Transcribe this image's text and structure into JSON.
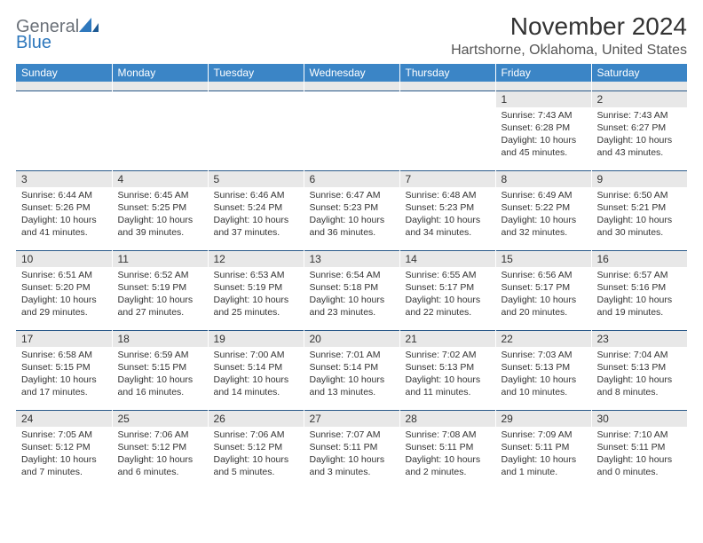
{
  "brand": {
    "part1": "General",
    "part2": "Blue"
  },
  "title": "November 2024",
  "location": "Hartshorne, Oklahoma, United States",
  "colors": {
    "header_bg": "#3b85c6",
    "header_text": "#ffffff",
    "daynum_bg": "#e8e8e8",
    "border": "#2a5a8a",
    "logo_gray": "#6b7179",
    "logo_blue": "#2e78bd",
    "text": "#333333"
  },
  "weekdays": [
    "Sunday",
    "Monday",
    "Tuesday",
    "Wednesday",
    "Thursday",
    "Friday",
    "Saturday"
  ],
  "weeks": [
    [
      {
        "n": "",
        "sunrise": "",
        "sunset": "",
        "daylight": ""
      },
      {
        "n": "",
        "sunrise": "",
        "sunset": "",
        "daylight": ""
      },
      {
        "n": "",
        "sunrise": "",
        "sunset": "",
        "daylight": ""
      },
      {
        "n": "",
        "sunrise": "",
        "sunset": "",
        "daylight": ""
      },
      {
        "n": "",
        "sunrise": "",
        "sunset": "",
        "daylight": ""
      },
      {
        "n": "1",
        "sunrise": "Sunrise: 7:43 AM",
        "sunset": "Sunset: 6:28 PM",
        "daylight": "Daylight: 10 hours and 45 minutes."
      },
      {
        "n": "2",
        "sunrise": "Sunrise: 7:43 AM",
        "sunset": "Sunset: 6:27 PM",
        "daylight": "Daylight: 10 hours and 43 minutes."
      }
    ],
    [
      {
        "n": "3",
        "sunrise": "Sunrise: 6:44 AM",
        "sunset": "Sunset: 5:26 PM",
        "daylight": "Daylight: 10 hours and 41 minutes."
      },
      {
        "n": "4",
        "sunrise": "Sunrise: 6:45 AM",
        "sunset": "Sunset: 5:25 PM",
        "daylight": "Daylight: 10 hours and 39 minutes."
      },
      {
        "n": "5",
        "sunrise": "Sunrise: 6:46 AM",
        "sunset": "Sunset: 5:24 PM",
        "daylight": "Daylight: 10 hours and 37 minutes."
      },
      {
        "n": "6",
        "sunrise": "Sunrise: 6:47 AM",
        "sunset": "Sunset: 5:23 PM",
        "daylight": "Daylight: 10 hours and 36 minutes."
      },
      {
        "n": "7",
        "sunrise": "Sunrise: 6:48 AM",
        "sunset": "Sunset: 5:23 PM",
        "daylight": "Daylight: 10 hours and 34 minutes."
      },
      {
        "n": "8",
        "sunrise": "Sunrise: 6:49 AM",
        "sunset": "Sunset: 5:22 PM",
        "daylight": "Daylight: 10 hours and 32 minutes."
      },
      {
        "n": "9",
        "sunrise": "Sunrise: 6:50 AM",
        "sunset": "Sunset: 5:21 PM",
        "daylight": "Daylight: 10 hours and 30 minutes."
      }
    ],
    [
      {
        "n": "10",
        "sunrise": "Sunrise: 6:51 AM",
        "sunset": "Sunset: 5:20 PM",
        "daylight": "Daylight: 10 hours and 29 minutes."
      },
      {
        "n": "11",
        "sunrise": "Sunrise: 6:52 AM",
        "sunset": "Sunset: 5:19 PM",
        "daylight": "Daylight: 10 hours and 27 minutes."
      },
      {
        "n": "12",
        "sunrise": "Sunrise: 6:53 AM",
        "sunset": "Sunset: 5:19 PM",
        "daylight": "Daylight: 10 hours and 25 minutes."
      },
      {
        "n": "13",
        "sunrise": "Sunrise: 6:54 AM",
        "sunset": "Sunset: 5:18 PM",
        "daylight": "Daylight: 10 hours and 23 minutes."
      },
      {
        "n": "14",
        "sunrise": "Sunrise: 6:55 AM",
        "sunset": "Sunset: 5:17 PM",
        "daylight": "Daylight: 10 hours and 22 minutes."
      },
      {
        "n": "15",
        "sunrise": "Sunrise: 6:56 AM",
        "sunset": "Sunset: 5:17 PM",
        "daylight": "Daylight: 10 hours and 20 minutes."
      },
      {
        "n": "16",
        "sunrise": "Sunrise: 6:57 AM",
        "sunset": "Sunset: 5:16 PM",
        "daylight": "Daylight: 10 hours and 19 minutes."
      }
    ],
    [
      {
        "n": "17",
        "sunrise": "Sunrise: 6:58 AM",
        "sunset": "Sunset: 5:15 PM",
        "daylight": "Daylight: 10 hours and 17 minutes."
      },
      {
        "n": "18",
        "sunrise": "Sunrise: 6:59 AM",
        "sunset": "Sunset: 5:15 PM",
        "daylight": "Daylight: 10 hours and 16 minutes."
      },
      {
        "n": "19",
        "sunrise": "Sunrise: 7:00 AM",
        "sunset": "Sunset: 5:14 PM",
        "daylight": "Daylight: 10 hours and 14 minutes."
      },
      {
        "n": "20",
        "sunrise": "Sunrise: 7:01 AM",
        "sunset": "Sunset: 5:14 PM",
        "daylight": "Daylight: 10 hours and 13 minutes."
      },
      {
        "n": "21",
        "sunrise": "Sunrise: 7:02 AM",
        "sunset": "Sunset: 5:13 PM",
        "daylight": "Daylight: 10 hours and 11 minutes."
      },
      {
        "n": "22",
        "sunrise": "Sunrise: 7:03 AM",
        "sunset": "Sunset: 5:13 PM",
        "daylight": "Daylight: 10 hours and 10 minutes."
      },
      {
        "n": "23",
        "sunrise": "Sunrise: 7:04 AM",
        "sunset": "Sunset: 5:13 PM",
        "daylight": "Daylight: 10 hours and 8 minutes."
      }
    ],
    [
      {
        "n": "24",
        "sunrise": "Sunrise: 7:05 AM",
        "sunset": "Sunset: 5:12 PM",
        "daylight": "Daylight: 10 hours and 7 minutes."
      },
      {
        "n": "25",
        "sunrise": "Sunrise: 7:06 AM",
        "sunset": "Sunset: 5:12 PM",
        "daylight": "Daylight: 10 hours and 6 minutes."
      },
      {
        "n": "26",
        "sunrise": "Sunrise: 7:06 AM",
        "sunset": "Sunset: 5:12 PM",
        "daylight": "Daylight: 10 hours and 5 minutes."
      },
      {
        "n": "27",
        "sunrise": "Sunrise: 7:07 AM",
        "sunset": "Sunset: 5:11 PM",
        "daylight": "Daylight: 10 hours and 3 minutes."
      },
      {
        "n": "28",
        "sunrise": "Sunrise: 7:08 AM",
        "sunset": "Sunset: 5:11 PM",
        "daylight": "Daylight: 10 hours and 2 minutes."
      },
      {
        "n": "29",
        "sunrise": "Sunrise: 7:09 AM",
        "sunset": "Sunset: 5:11 PM",
        "daylight": "Daylight: 10 hours and 1 minute."
      },
      {
        "n": "30",
        "sunrise": "Sunrise: 7:10 AM",
        "sunset": "Sunset: 5:11 PM",
        "daylight": "Daylight: 10 hours and 0 minutes."
      }
    ]
  ]
}
